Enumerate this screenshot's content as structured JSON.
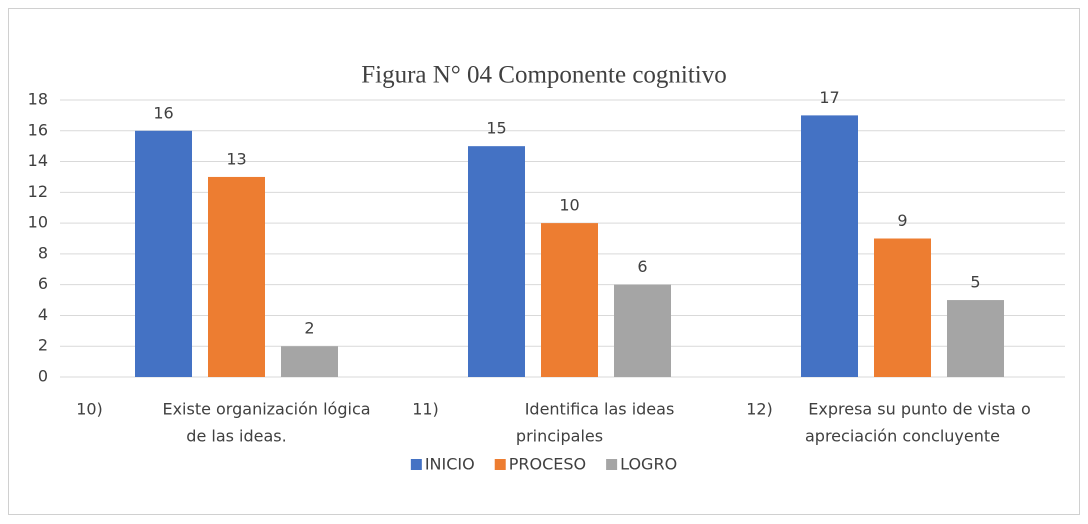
{
  "chart_data": {
    "type": "bar",
    "title": "Figura N° 04 Componente cognitivo",
    "categories": [
      [
        "10)",
        "Existe organización lógica",
        "de las ideas."
      ],
      [
        "11)",
        "Identifica las ideas",
        "principales"
      ],
      [
        "12)",
        "Expresa su punto de vista o",
        "apreciación concluyente"
      ]
    ],
    "series": [
      {
        "name": "INICIO",
        "color": "#4472c4",
        "values": [
          16,
          15,
          17
        ]
      },
      {
        "name": "PROCESO",
        "color": "#ed7d31",
        "values": [
          13,
          10,
          9
        ]
      },
      {
        "name": "LOGRO",
        "color": "#a5a5a5",
        "values": [
          2,
          6,
          5
        ]
      }
    ],
    "ylim": [
      0,
      18
    ],
    "yticks": [
      0,
      2,
      4,
      6,
      8,
      10,
      12,
      14,
      16,
      18
    ],
    "grid": true,
    "legend": "bottom"
  }
}
